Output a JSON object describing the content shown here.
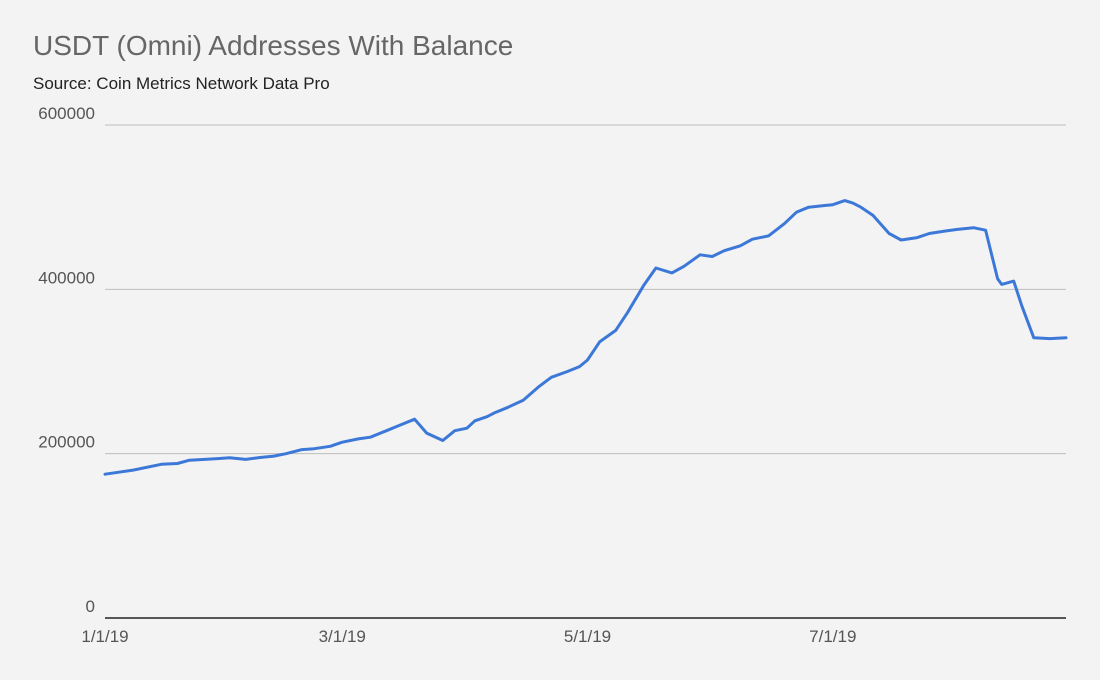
{
  "title": "USDT (Omni) Addresses With Balance",
  "subtitle": "Source: Coin Metrics Network Data Pro",
  "colors": {
    "background": "#f3f3f3",
    "line": "#3c78d8",
    "grid": "#bdbdbd",
    "baseline": "#222222"
  },
  "chart_data": {
    "type": "line",
    "title": "USDT (Omni) Addresses With Balance",
    "subtitle": "Source: Coin Metrics Network Data Pro",
    "xlabel": "",
    "ylabel": "",
    "xlim": [
      "2019-01-01",
      "2019-08-28"
    ],
    "ylim": [
      0,
      600000
    ],
    "x_ticks": [
      "1/1/19",
      "3/1/19",
      "5/1/19",
      "7/1/19"
    ],
    "x_tick_dates": [
      "2019-01-01",
      "2019-03-01",
      "2019-05-01",
      "2019-07-01"
    ],
    "y_ticks": [
      "0",
      "200000",
      "400000",
      "600000"
    ],
    "grid": true,
    "legend": "none",
    "series": [
      {
        "x": [
          "2019-01-01",
          "2019-01-08",
          "2019-01-15",
          "2019-01-19",
          "2019-01-22",
          "2019-01-29",
          "2019-02-01",
          "2019-02-05",
          "2019-02-08",
          "2019-02-12",
          "2019-02-15",
          "2019-02-19",
          "2019-02-22",
          "2019-02-26",
          "2019-03-01",
          "2019-03-05",
          "2019-03-08",
          "2019-03-12",
          "2019-03-15",
          "2019-03-19",
          "2019-03-22",
          "2019-03-26",
          "2019-03-29",
          "2019-04-01",
          "2019-04-03",
          "2019-04-06",
          "2019-04-08",
          "2019-04-11",
          "2019-04-15",
          "2019-04-19",
          "2019-04-22",
          "2019-04-26",
          "2019-04-29",
          "2019-05-01",
          "2019-05-04",
          "2019-05-08",
          "2019-05-11",
          "2019-05-15",
          "2019-05-18",
          "2019-05-22",
          "2019-05-25",
          "2019-05-29",
          "2019-06-01",
          "2019-06-04",
          "2019-06-08",
          "2019-06-11",
          "2019-06-15",
          "2019-06-19",
          "2019-06-22",
          "2019-06-25",
          "2019-06-29",
          "2019-07-01",
          "2019-07-04",
          "2019-07-06",
          "2019-07-08",
          "2019-07-11",
          "2019-07-15",
          "2019-07-18",
          "2019-07-22",
          "2019-07-25",
          "2019-07-29",
          "2019-08-01",
          "2019-08-05",
          "2019-08-08",
          "2019-08-11",
          "2019-08-12",
          "2019-08-15",
          "2019-08-17",
          "2019-08-20",
          "2019-08-24",
          "2019-08-28"
        ],
        "values": [
          175000,
          180000,
          187000,
          188000,
          192000,
          194000,
          195000,
          193000,
          195000,
          197000,
          200000,
          205000,
          206000,
          209000,
          214000,
          218000,
          220000,
          228000,
          234000,
          242000,
          225000,
          216000,
          228000,
          231000,
          240000,
          245000,
          250000,
          256000,
          265000,
          282000,
          293000,
          300000,
          306000,
          314000,
          336000,
          350000,
          372000,
          405000,
          426000,
          420000,
          428000,
          442000,
          440000,
          447000,
          453000,
          461000,
          465000,
          480000,
          494000,
          500000,
          502000,
          503000,
          508000,
          505000,
          500000,
          490000,
          468000,
          460000,
          463000,
          468000,
          471000,
          473000,
          475000,
          472000,
          413000,
          406000,
          410000,
          380000,
          341000,
          340000,
          341000
        ]
      }
    ]
  }
}
